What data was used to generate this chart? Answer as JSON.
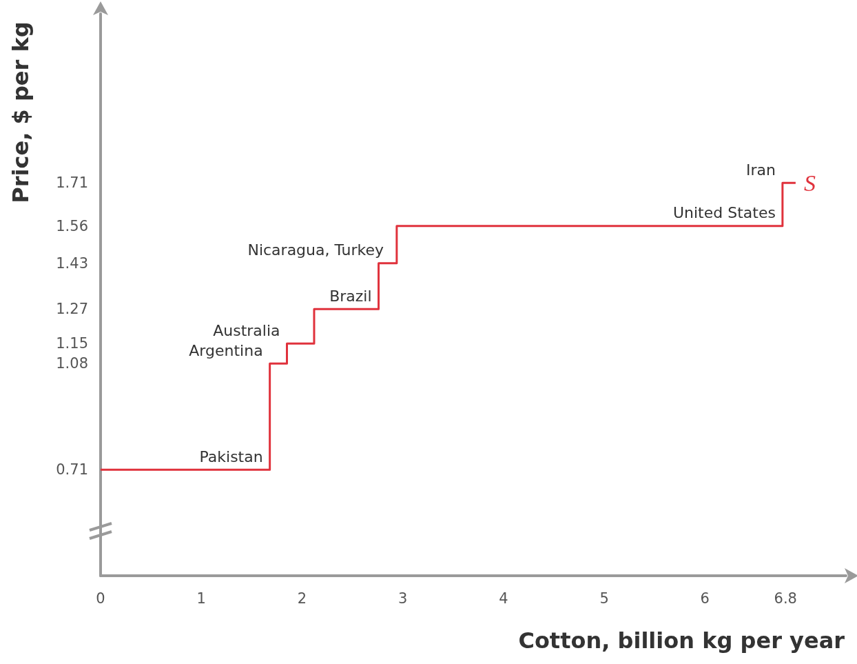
{
  "chart_data": {
    "type": "step",
    "xlabel": "Cotton, billion kg per year",
    "ylabel": "Price, $ per kg",
    "x": [
      0,
      1.68,
      1.85,
      2.12,
      2.76,
      2.94,
      6.77,
      6.9
    ],
    "series": [
      {
        "name": "S",
        "color": "#e0323c",
        "values": [
          0.71,
          1.08,
          1.15,
          1.27,
          1.43,
          1.56,
          1.71,
          1.71
        ]
      }
    ],
    "xlim": [
      0,
      7.4
    ],
    "xticks": [
      0,
      1,
      2,
      3,
      4,
      5,
      6,
      6.8
    ],
    "ylim": [
      0.34,
      2.3
    ],
    "yticks": [
      0.71,
      1.08,
      1.15,
      1.27,
      1.43,
      1.56,
      1.71
    ],
    "grid": false,
    "legend": false,
    "marker": "none",
    "line_style": "solid",
    "annotations": [
      {
        "text": "Pakistan",
        "x": 1.68,
        "y": 0.71
      },
      {
        "text": "Argentina",
        "x": 1.68,
        "y": 1.08
      },
      {
        "text": "Australia",
        "x": 1.85,
        "y": 1.15
      },
      {
        "text": "Brazil",
        "x": 2.76,
        "y": 1.27
      },
      {
        "text": "Nicaragua, Turkey",
        "x": 2.88,
        "y": 1.43
      },
      {
        "text": "United States",
        "x": 6.77,
        "y": 1.56
      },
      {
        "text": "Iran",
        "x": 6.77,
        "y": 1.71
      }
    ]
  }
}
